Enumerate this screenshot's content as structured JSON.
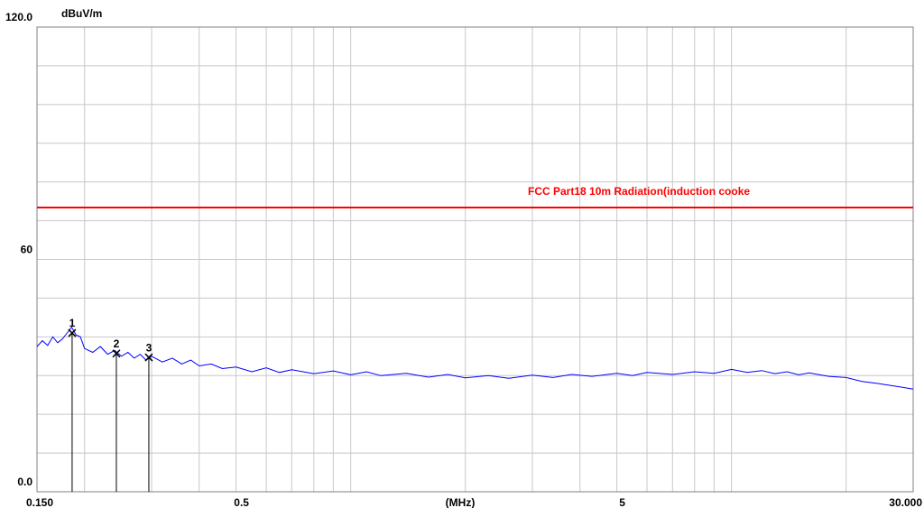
{
  "chart_data": {
    "type": "line",
    "y_unit": "dBuV/m",
    "x_label": "(MHz)",
    "x_scale": "log",
    "xlim": [
      0.15,
      30
    ],
    "xticks": [
      {
        "value": 0.15,
        "label": "0.150"
      },
      0.5,
      5,
      {
        "value": 30,
        "label": "30.000"
      }
    ],
    "xgrid": [
      0.15,
      0.2,
      0.3,
      0.4,
      0.5,
      0.6,
      0.7,
      0.8,
      0.9,
      1,
      2,
      3,
      4,
      5,
      6,
      7,
      8,
      9,
      10,
      20,
      30
    ],
    "ylim": [
      0,
      120
    ],
    "yticks": [
      {
        "value": 0,
        "label": "0.0"
      },
      60,
      {
        "value": 120,
        "label": "120.0"
      }
    ],
    "ygrid": [
      0,
      10,
      20,
      30,
      40,
      50,
      60,
      70,
      80,
      90,
      100,
      110,
      120
    ],
    "grid": true,
    "series": [
      {
        "color": "#0000ff",
        "x": [
          0.15,
          0.155,
          0.16,
          0.165,
          0.17,
          0.175,
          0.18,
          0.185,
          0.19,
          0.195,
          0.2,
          0.21,
          0.22,
          0.23,
          0.24,
          0.25,
          0.26,
          0.27,
          0.28,
          0.29,
          0.3,
          0.32,
          0.34,
          0.36,
          0.38,
          0.4,
          0.43,
          0.46,
          0.5,
          0.55,
          0.6,
          0.65,
          0.7,
          0.8,
          0.9,
          1.0,
          1.1,
          1.2,
          1.4,
          1.6,
          1.8,
          2.0,
          2.3,
          2.6,
          3.0,
          3.4,
          3.8,
          4.3,
          5.0,
          5.5,
          6.0,
          7.0,
          8.0,
          9.0,
          10,
          11,
          12,
          13,
          14,
          15,
          16,
          18,
          20,
          22,
          24,
          26,
          28,
          30
        ],
        "values": [
          37.5,
          39,
          37.8,
          40,
          38.5,
          39.5,
          41,
          42.5,
          40.5,
          40,
          37,
          36,
          37.5,
          35.5,
          36.5,
          35,
          36,
          34.5,
          35.5,
          34,
          35,
          33.5,
          34.5,
          33,
          34,
          32.5,
          33,
          31.8,
          32.2,
          31,
          32,
          30.8,
          31.5,
          30.5,
          31.2,
          30.2,
          31,
          30,
          30.6,
          29.6,
          30.3,
          29.4,
          30,
          29.3,
          30.1,
          29.5,
          30.3,
          29.8,
          30.6,
          30,
          30.8,
          30.3,
          31,
          30.6,
          31.6,
          30.8,
          31.3,
          30.5,
          31,
          30.2,
          30.7,
          29.8,
          29.5,
          28.5,
          28,
          27.5,
          27,
          26.5
        ]
      }
    ],
    "limit_line": {
      "name": "FCC Part18 10m Radiation(induction cooke",
      "value": 73.4,
      "color": "#ff0000"
    },
    "markers": [
      {
        "label": "1",
        "x": 0.1855,
        "value": 41
      },
      {
        "label": "2",
        "x": 0.2424,
        "value": 35.7
      },
      {
        "label": "3",
        "x": 0.295,
        "value": 34.7
      }
    ]
  }
}
